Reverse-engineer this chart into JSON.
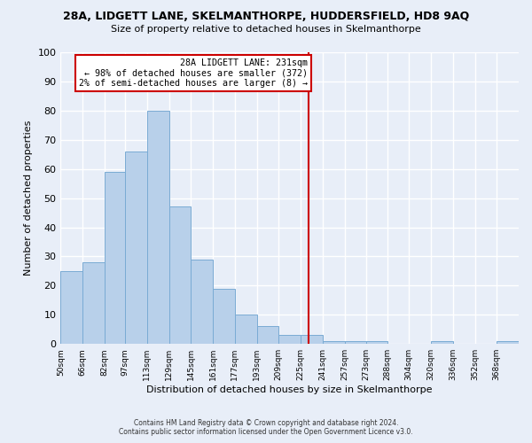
{
  "title_line1": "28A, LIDGETT LANE, SKELMANTHORPE, HUDDERSFIELD, HD8 9AQ",
  "title_line2": "Size of property relative to detached houses in Skelmanthorpe",
  "xlabel": "Distribution of detached houses by size in Skelmanthorpe",
  "ylabel": "Number of detached properties",
  "bar_labels": [
    "50sqm",
    "66sqm",
    "82sqm",
    "97sqm",
    "113sqm",
    "129sqm",
    "145sqm",
    "161sqm",
    "177sqm",
    "193sqm",
    "209sqm",
    "225sqm",
    "241sqm",
    "257sqm",
    "273sqm",
    "288sqm",
    "304sqm",
    "320sqm",
    "336sqm",
    "352sqm",
    "368sqm"
  ],
  "bar_values": [
    25,
    28,
    59,
    66,
    80,
    47,
    29,
    19,
    10,
    6,
    3,
    3,
    1,
    1,
    1,
    0,
    0,
    1,
    0,
    0,
    1
  ],
  "bar_color": "#b8d0ea",
  "bar_edge_color": "#7aabd4",
  "vline_x": 231,
  "vline_color": "#cc0000",
  "annotation_title": "28A LIDGETT LANE: 231sqm",
  "annotation_line1": "← 98% of detached houses are smaller (372)",
  "annotation_line2": "2% of semi-detached houses are larger (8) →",
  "annotation_box_edgecolor": "#cc0000",
  "ylim": [
    0,
    100
  ],
  "yticks": [
    0,
    10,
    20,
    30,
    40,
    50,
    60,
    70,
    80,
    90,
    100
  ],
  "footer1": "Contains HM Land Registry data © Crown copyright and database right 2024.",
  "footer2": "Contains public sector information licensed under the Open Government Licence v3.0.",
  "bin_edges": [
    50,
    66,
    82,
    97,
    113,
    129,
    145,
    161,
    177,
    193,
    209,
    225,
    241,
    257,
    273,
    288,
    304,
    320,
    336,
    352,
    368,
    384
  ],
  "bg_color": "#e8eef8",
  "grid_color": "#ffffff"
}
